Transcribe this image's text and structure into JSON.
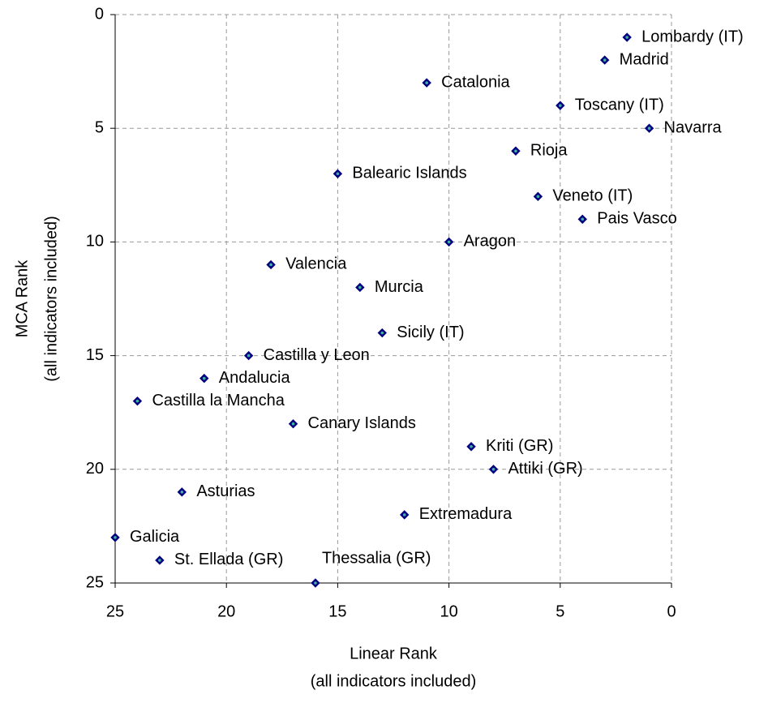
{
  "chart_data": {
    "type": "scatter",
    "xlabel": [
      "Linear Rank",
      "(all indicators included)"
    ],
    "ylabel": [
      "MCA Rank",
      "(all indicators included)"
    ],
    "xlim": [
      25,
      0
    ],
    "ylim": [
      0,
      25
    ],
    "xticks": [
      25,
      20,
      15,
      10,
      5,
      0
    ],
    "yticks": [
      0,
      5,
      10,
      15,
      20,
      25
    ],
    "grid": true,
    "series": [
      {
        "color": "#000080",
        "labels": [
          "Lombardy (IT)",
          "Madrid",
          "Catalonia",
          "Toscany (IT)",
          "Navarra",
          "Rioja",
          "Balearic Islands",
          "Veneto (IT)",
          "Pais Vasco",
          "Aragon",
          "Valencia",
          "Murcia",
          "Sicily (IT)",
          "Castilla y Leon",
          "Andalucia",
          "Castilla la Mancha",
          "Canary Islands",
          "Kriti (GR)",
          "Attiki (GR)",
          "Asturias",
          "Extremadura",
          "Galicia",
          "St. Ellada (GR)",
          "Thessalia (GR)"
        ],
        "x": [
          2,
          3,
          11,
          5,
          1,
          7,
          15,
          6,
          4,
          10,
          18,
          14,
          13,
          19,
          21,
          24,
          17,
          9,
          8,
          22,
          12,
          25,
          23,
          16
        ],
        "values": [
          1,
          2,
          3,
          4,
          5,
          6,
          7,
          8,
          9,
          10,
          11,
          12,
          14,
          15,
          16,
          17,
          18,
          19,
          20,
          21,
          22,
          23,
          24,
          25
        ]
      }
    ]
  }
}
